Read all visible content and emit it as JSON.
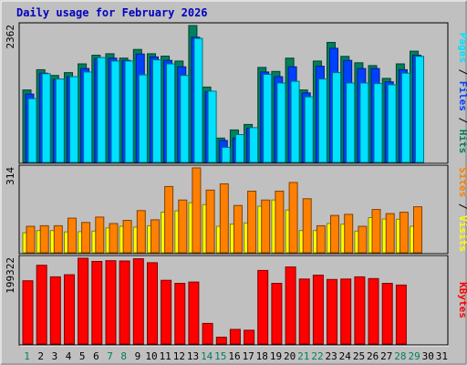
{
  "title": "Daily usage for February 2026",
  "colors": {
    "background": "#c0c0c0",
    "hits": "#00805c",
    "files": "#0040ff",
    "pages": "#00e0ff",
    "visits": "#ffff00",
    "sites": "#ff8000",
    "kbytes": "#ff0000",
    "title": "#0000c0",
    "weekend_label": "#00805c",
    "weekday_label": "#000000"
  },
  "chart_data": [
    {
      "type": "bar",
      "name": "hits-files-pages",
      "x": [
        "1",
        "2",
        "3",
        "4",
        "5",
        "6",
        "7",
        "8",
        "9",
        "10",
        "11",
        "12",
        "13",
        "14",
        "15",
        "16",
        "17",
        "18",
        "19",
        "20",
        "21",
        "22",
        "23",
        "24",
        "25",
        "26",
        "27",
        "28",
        "29",
        "30",
        "31"
      ],
      "y_max_label": "2362",
      "ylim": [
        0,
        2362
      ],
      "ylabel_parts": [
        {
          "text": "Pages",
          "color": "#00e0ff"
        },
        {
          "text": " / ",
          "color": "#000000"
        },
        {
          "text": "Files",
          "color": "#0040ff"
        },
        {
          "text": " / ",
          "color": "#000000"
        },
        {
          "text": "Hits",
          "color": "#00805c"
        }
      ],
      "series": [
        {
          "name": "Hits",
          "values": [
            1250,
            1600,
            1500,
            1550,
            1700,
            1850,
            1875,
            1800,
            1950,
            1875,
            1835,
            1750,
            2362,
            1300,
            420,
            560,
            655,
            1640,
            1570,
            1800,
            1250,
            1750,
            2070,
            1830,
            1720,
            1670,
            1450,
            1700,
            1920,
            0,
            0
          ]
        },
        {
          "name": "Files",
          "values": [
            1180,
            1540,
            1430,
            1480,
            1620,
            1790,
            1800,
            1760,
            1870,
            1820,
            1760,
            1650,
            2160,
            1220,
            380,
            420,
            590,
            1560,
            1480,
            1650,
            1200,
            1660,
            1970,
            1760,
            1620,
            1620,
            1390,
            1600,
            1850,
            0,
            0
          ]
        },
        {
          "name": "Pages",
          "values": [
            1100,
            1530,
            1440,
            1480,
            1560,
            1810,
            1750,
            1750,
            1510,
            1770,
            1700,
            1500,
            2140,
            1230,
            260,
            480,
            600,
            1520,
            1370,
            1400,
            1130,
            1440,
            1550,
            1370,
            1370,
            1360,
            1340,
            1540,
            1830,
            0,
            0
          ]
        }
      ]
    },
    {
      "type": "bar",
      "name": "visits-sites",
      "x": [
        "1",
        "2",
        "3",
        "4",
        "5",
        "6",
        "7",
        "8",
        "9",
        "10",
        "11",
        "12",
        "13",
        "14",
        "15",
        "16",
        "17",
        "18",
        "19",
        "20",
        "21",
        "22",
        "23",
        "24",
        "25",
        "26",
        "27",
        "28",
        "29",
        "30",
        "31"
      ],
      "y_max_label": "314",
      "ylim": [
        0,
        314
      ],
      "ylabel_parts": [
        {
          "text": "Sites",
          "color": "#ff8000"
        },
        {
          "text": " / ",
          "color": "#000000"
        },
        {
          "text": "Visits",
          "color": "#ffff00"
        }
      ],
      "series": [
        {
          "name": "Visits",
          "values": [
            74,
            82,
            82,
            77,
            78,
            80,
            92,
            98,
            95,
            100,
            150,
            155,
            185,
            178,
            98,
            106,
            110,
            172,
            195,
            158,
            82,
            82,
            108,
            106,
            80,
            130,
            125,
            124,
            98,
            0,
            0
          ]
        },
        {
          "name": "Sites",
          "values": [
            98,
            100,
            100,
            128,
            112,
            132,
            108,
            120,
            156,
            122,
            245,
            195,
            314,
            232,
            255,
            175,
            228,
            195,
            228,
            260,
            200,
            100,
            138,
            142,
            98,
            160,
            145,
            150,
            170,
            0,
            0
          ]
        }
      ]
    },
    {
      "type": "bar",
      "name": "kbytes",
      "x": [
        "1",
        "2",
        "3",
        "4",
        "5",
        "6",
        "7",
        "8",
        "9",
        "10",
        "11",
        "12",
        "13",
        "14",
        "15",
        "16",
        "17",
        "18",
        "19",
        "20",
        "21",
        "22",
        "23",
        "24",
        "25",
        "26",
        "27",
        "28",
        "29",
        "30",
        "31"
      ],
      "y_max_label": "199322",
      "ylim": [
        0,
        199322
      ],
      "ylabel_parts": [
        {
          "text": "KBytes",
          "color": "#ff0000"
        }
      ],
      "series": [
        {
          "name": "KBytes",
          "values": [
            147000,
            183000,
            156000,
            161000,
            199322,
            192000,
            193500,
            193000,
            198000,
            189000,
            148000,
            141000,
            144000,
            48000,
            16000,
            34000,
            32000,
            171000,
            141000,
            179000,
            151000,
            160000,
            150000,
            151000,
            156000,
            152000,
            141000,
            137000,
            0,
            0,
            0
          ]
        }
      ]
    }
  ],
  "x_labels": [
    {
      "text": "1",
      "weekend": true
    },
    {
      "text": "2",
      "weekend": false
    },
    {
      "text": "3",
      "weekend": false
    },
    {
      "text": "4",
      "weekend": false
    },
    {
      "text": "5",
      "weekend": false
    },
    {
      "text": "6",
      "weekend": false
    },
    {
      "text": "7",
      "weekend": true
    },
    {
      "text": "8",
      "weekend": true
    },
    {
      "text": "9",
      "weekend": false
    },
    {
      "text": "10",
      "weekend": false
    },
    {
      "text": "11",
      "weekend": false
    },
    {
      "text": "12",
      "weekend": false
    },
    {
      "text": "13",
      "weekend": false
    },
    {
      "text": "14",
      "weekend": true
    },
    {
      "text": "15",
      "weekend": true
    },
    {
      "text": "16",
      "weekend": false
    },
    {
      "text": "17",
      "weekend": false
    },
    {
      "text": "18",
      "weekend": false
    },
    {
      "text": "19",
      "weekend": false
    },
    {
      "text": "20",
      "weekend": false
    },
    {
      "text": "21",
      "weekend": true
    },
    {
      "text": "22",
      "weekend": true
    },
    {
      "text": "23",
      "weekend": false
    },
    {
      "text": "24",
      "weekend": false
    },
    {
      "text": "25",
      "weekend": false
    },
    {
      "text": "26",
      "weekend": false
    },
    {
      "text": "27",
      "weekend": false
    },
    {
      "text": "28",
      "weekend": true
    },
    {
      "text": "29",
      "weekend": true
    },
    {
      "text": "30",
      "weekend": false
    },
    {
      "text": "31",
      "weekend": false
    }
  ]
}
